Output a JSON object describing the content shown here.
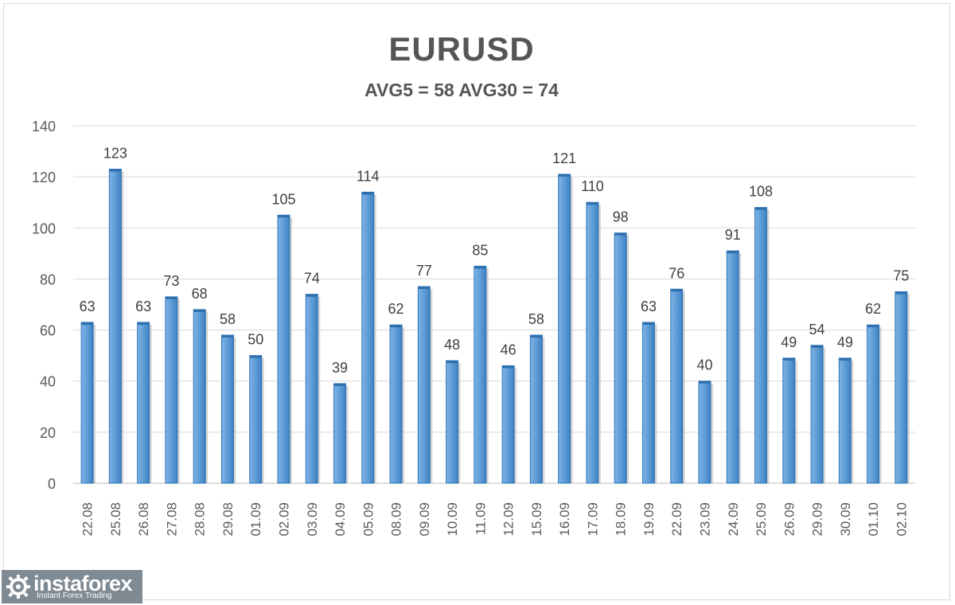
{
  "chart_data": {
    "type": "bar",
    "title": "EURUSD",
    "subtitle": "AVG5 = 58 AVG30 = 74",
    "categories": [
      "22.08",
      "25.08",
      "26.08",
      "27.08",
      "28.08",
      "29.08",
      "01.09",
      "02.09",
      "03.09",
      "04.09",
      "05.09",
      "08.09",
      "09.09",
      "10.09",
      "11.09",
      "12.09",
      "15.09",
      "16.09",
      "17.09",
      "18.09",
      "19.09",
      "22.09",
      "23.09",
      "24.09",
      "25.09",
      "26.09",
      "29.09",
      "30.09",
      "01.10",
      "02.10"
    ],
    "values": [
      63,
      123,
      63,
      73,
      68,
      58,
      50,
      105,
      74,
      39,
      114,
      62,
      77,
      48,
      85,
      46,
      58,
      121,
      110,
      98,
      63,
      76,
      40,
      91,
      108,
      49,
      54,
      49,
      62,
      75
    ],
    "ylim": [
      0,
      140
    ],
    "yticks": [
      0,
      20,
      40,
      60,
      80,
      100,
      120,
      140
    ],
    "grid": true,
    "data_labels": true,
    "bar_color": "#5b9bd5",
    "bar_edge_color": "#2e75b6"
  },
  "logo": {
    "name": "instaforex",
    "tagline": "Instant Forex Trading"
  }
}
